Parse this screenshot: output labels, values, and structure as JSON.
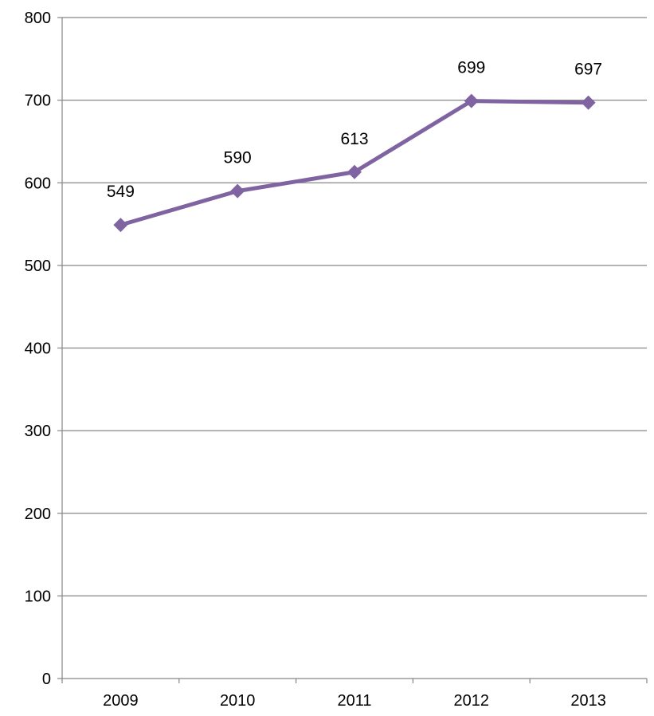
{
  "chart_data": {
    "type": "line",
    "title": "",
    "xlabel": "",
    "ylabel": "",
    "categories": [
      "2009",
      "2010",
      "2011",
      "2012",
      "2013"
    ],
    "series": [
      {
        "values": [
          549,
          590,
          613,
          699,
          697
        ],
        "color": "#8064A2",
        "marker": "diamond"
      }
    ],
    "ylim": [
      0,
      800
    ],
    "yticks": [
      0,
      100,
      200,
      300,
      400,
      500,
      600,
      700,
      800
    ],
    "grid": true,
    "legend": "none",
    "data_labels": true,
    "colors": {
      "line": "#8064A2",
      "grid": "#868686",
      "axis": "#868686"
    }
  }
}
